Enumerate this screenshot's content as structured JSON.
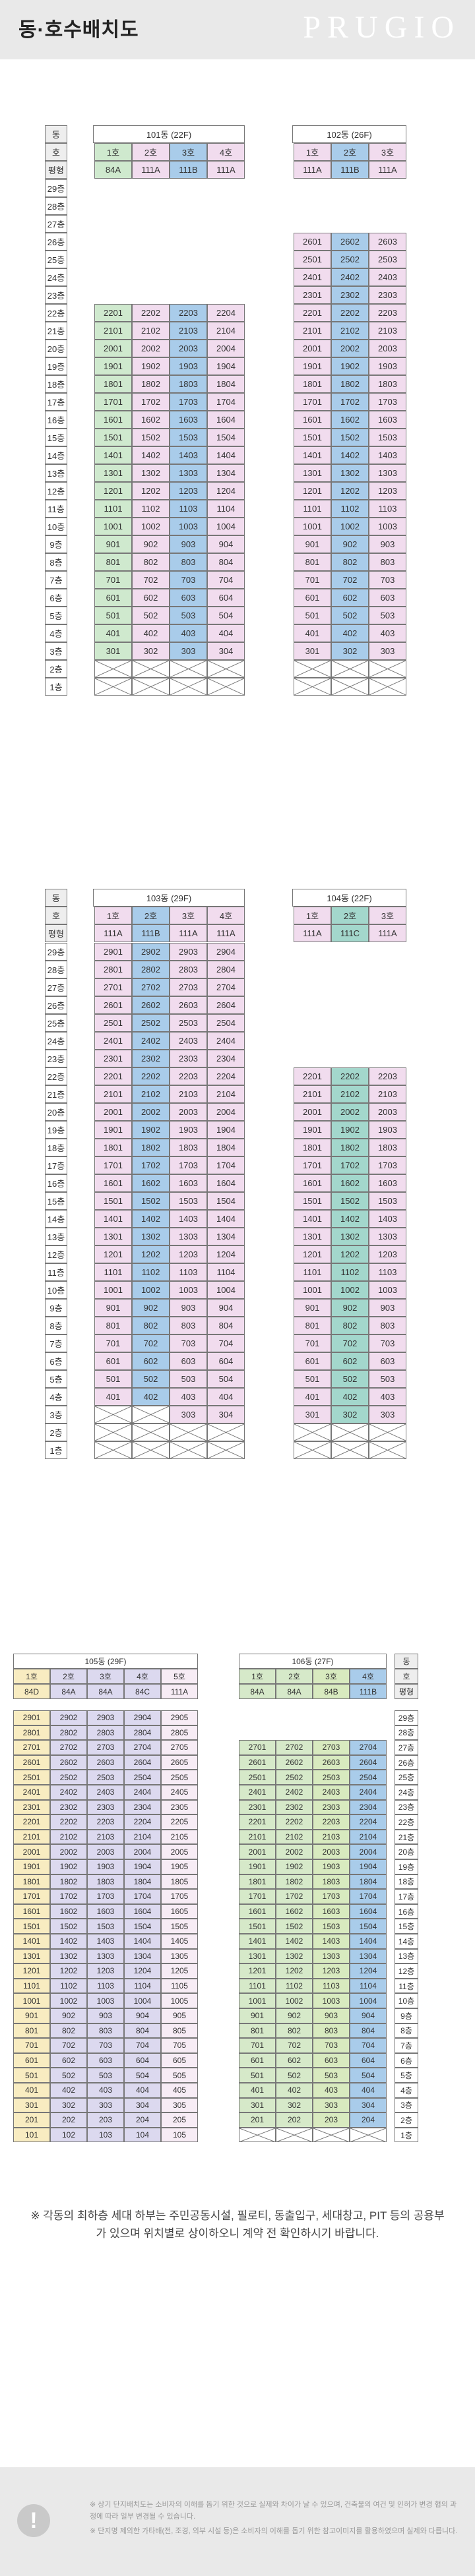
{
  "page": {
    "title": "동·호수배치도",
    "brand": "PRUGIO"
  },
  "colors": {
    "mint": "#cfe9ce",
    "blue": "#a9ccea",
    "pink": "#f1dcee",
    "lpink": "#f7ecf5",
    "green": "#d6e9c9",
    "ygreen": "#d8eabf",
    "lavender": "#dcd9ef",
    "yellow": "#f8ecc1",
    "cream": "#f8f2d4",
    "teal": "#a3d7cc",
    "gray": "#eeeeee"
  },
  "labels": {
    "dong": "동",
    "ho": "호",
    "pyeong": "평형"
  },
  "floors": [
    "1층",
    "2층",
    "3층",
    "4층",
    "5층",
    "6층",
    "7층",
    "8층",
    "9층",
    "10층",
    "11층",
    "12층",
    "13층",
    "14층",
    "15층",
    "16층",
    "17층",
    "18층",
    "19층",
    "20층",
    "21층",
    "22층",
    "23층",
    "24층",
    "25층",
    "26층",
    "27층",
    "28층",
    "29층"
  ],
  "buildings": [
    {
      "name": "101동 (22F)",
      "floors": 22,
      "lines": [
        {
          "ho": "1호",
          "type": "84A",
          "color": "mint"
        },
        {
          "ho": "2호",
          "type": "111A",
          "color": "pink"
        },
        {
          "ho": "3호",
          "type": "111B",
          "color": "blue"
        },
        {
          "ho": "4호",
          "type": "111A",
          "color": "pink"
        }
      ],
      "blanks": [
        [
          1,
          1,
          1,
          1
        ],
        [
          1,
          1,
          1,
          1
        ]
      ]
    },
    {
      "name": "102동 (26F)",
      "floors": 26,
      "lines": [
        {
          "ho": "1호",
          "type": "111A",
          "color": "pink"
        },
        {
          "ho": "2호",
          "type": "111B",
          "color": "blue"
        },
        {
          "ho": "3호",
          "type": "111A",
          "color": "pink"
        }
      ],
      "blanks": [
        [
          1,
          1,
          1
        ],
        [
          1,
          1,
          1
        ]
      ]
    },
    {
      "name": "103동 (29F)",
      "floors": 29,
      "lines": [
        {
          "ho": "1호",
          "type": "111A",
          "color": "pink"
        },
        {
          "ho": "2호",
          "type": "111B",
          "color": "blue"
        },
        {
          "ho": "3호",
          "type": "111A",
          "color": "pink"
        },
        {
          "ho": "4호",
          "type": "111A",
          "color": "pink"
        }
      ],
      "blanks": [
        [
          1,
          1,
          1,
          1
        ],
        [
          1,
          1,
          1,
          1
        ],
        [
          1,
          1,
          0,
          0
        ]
      ]
    },
    {
      "name": "104동 (22F)",
      "floors": 22,
      "lines": [
        {
          "ho": "1호",
          "type": "111A",
          "color": "pink"
        },
        {
          "ho": "2호",
          "type": "111C",
          "color": "teal"
        },
        {
          "ho": "3호",
          "type": "111A",
          "color": "pink"
        }
      ],
      "blanks": [
        [
          1,
          1,
          1
        ],
        [
          1,
          1,
          1
        ]
      ]
    },
    {
      "name": "105동 (29F)",
      "floors": 29,
      "lines": [
        {
          "ho": "1호",
          "type": "84D",
          "color": "yellow"
        },
        {
          "ho": "2호",
          "type": "84A",
          "color": "lavender"
        },
        {
          "ho": "3호",
          "type": "84A",
          "color": "lavender"
        },
        {
          "ho": "4호",
          "type": "84C",
          "color": "lavender"
        },
        {
          "ho": "5호",
          "type": "111A",
          "color": "lpink"
        }
      ],
      "blanks": []
    },
    {
      "name": "106동 (27F)",
      "floors": 27,
      "lines": [
        {
          "ho": "1호",
          "type": "84A",
          "color": "green"
        },
        {
          "ho": "2호",
          "type": "84A",
          "color": "green"
        },
        {
          "ho": "3호",
          "type": "84B",
          "color": "ygreen"
        },
        {
          "ho": "4호",
          "type": "111B",
          "color": "blue"
        }
      ],
      "blanks": [
        [
          1,
          1,
          1,
          1
        ]
      ]
    }
  ],
  "note": "※ 각동의 최하층 세대 하부는 주민공동시설, 필로티, 동출입구, 세대창고, PIT 등의 공용부가 있으며 위치별로 상이하오니 계약 전 확인하시기 바랍니다.",
  "footer": {
    "icon": "!",
    "lines": [
      "※ 상기 단지배치도는 소비자의 이해를 돕기 위한 것으로 실제와 차이가 날 수 있으며, 건축물의 여건 및 인허가 변경 협의 과정에 따라 일부 변경될 수 있습니다.",
      "※ 단지명 제외한 가타배(전, 조경, 외부 시설 등)은 소비자의 이해를 돕기 위한 참고이미지를 활용하였으며 실제와 다릅니다."
    ]
  }
}
